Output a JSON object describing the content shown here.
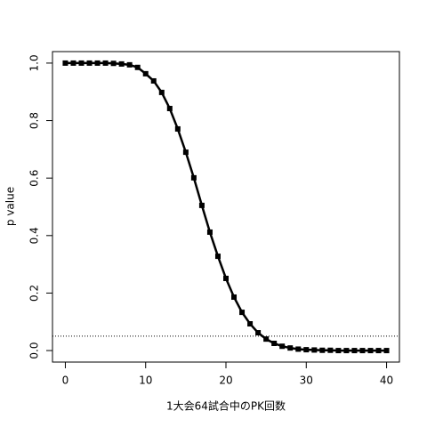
{
  "chart_data": {
    "type": "line",
    "xlabel": "1大会64試合中のPK回数",
    "ylabel": "p value",
    "x": [
      0,
      1,
      2,
      3,
      4,
      5,
      6,
      7,
      8,
      9,
      10,
      11,
      12,
      13,
      14,
      15,
      16,
      17,
      18,
      19,
      20,
      21,
      22,
      23,
      24,
      25,
      26,
      27,
      28,
      29,
      30,
      31,
      32,
      33,
      34,
      35,
      36,
      37,
      38,
      39,
      40
    ],
    "series": [
      {
        "color": "#000000",
        "values": [
          1.0,
          1.0,
          1.0,
          1.0,
          1.0,
          1.0,
          0.999,
          0.997,
          0.994,
          0.985,
          0.963,
          0.938,
          0.898,
          0.842,
          0.771,
          0.69,
          0.601,
          0.505,
          0.412,
          0.328,
          0.251,
          0.186,
          0.133,
          0.093,
          0.062,
          0.04,
          0.025,
          0.015,
          0.009,
          0.005,
          0.003,
          0.002,
          0.001,
          0.001,
          0,
          0,
          0,
          0,
          0,
          0,
          0
        ]
      }
    ],
    "xlim": [
      -1.6,
      41.6
    ],
    "ylim": [
      -0.04,
      1.04
    ],
    "xticks": [
      0,
      10,
      20,
      30,
      40
    ],
    "yticks": [
      {
        "value": 0,
        "label": "0.0"
      },
      0.2,
      0.4,
      0.6,
      0.8,
      {
        "value": 1,
        "label": "1.0"
      }
    ],
    "hline": 0.05
  }
}
